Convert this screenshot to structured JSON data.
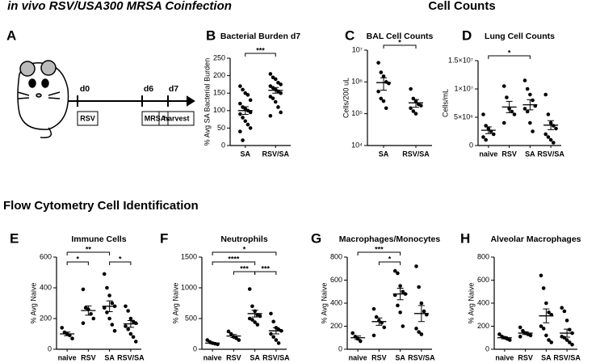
{
  "headings": {
    "coinfection": "in vivo RSV/USA300 MRSA Coinfection",
    "cell_counts": "Cell Counts",
    "flow": "Flow Cytometry Cell Identification"
  },
  "diagram": {
    "panel": "A",
    "days": [
      "d0",
      "d6",
      "d7"
    ],
    "steps": [
      "RSV",
      "MRSA",
      "harvest"
    ]
  },
  "chart_data": [
    {
      "type": "strip",
      "panel": "B",
      "title": "Bacterial Burden d7",
      "y_label": "% Avg SA Bacterial Burden",
      "categories": [
        "SA",
        "RSV/SA"
      ],
      "ylim": [
        0,
        250
      ],
      "yticks": [
        0,
        50,
        100,
        150,
        200,
        250
      ],
      "log": false,
      "groups": [
        {
          "points": [
            170,
            160,
            150,
            145,
            130,
            120,
            110,
            105,
            100,
            95,
            90,
            80,
            70,
            60,
            50,
            40,
            15
          ],
          "mean": 100,
          "sem": 11
        },
        {
          "points": [
            205,
            195,
            190,
            180,
            175,
            170,
            165,
            160,
            155,
            150,
            140,
            135,
            125,
            110,
            95,
            85
          ],
          "mean": 158,
          "sem": 8
        }
      ],
      "significance": [
        {
          "between": [
            "SA",
            "RSV/SA"
          ],
          "label": "***"
        }
      ]
    },
    {
      "type": "strip",
      "panel": "C",
      "title": "BAL Cell Counts",
      "y_label": "Cells/200 uL",
      "categories": [
        "SA",
        "RSV/SA"
      ],
      "ylim": [
        10000,
        10000000
      ],
      "log": true,
      "yticks": [
        {
          "value": 10000,
          "label": "10⁴"
        },
        {
          "value": 100000,
          "label": "10⁵"
        },
        {
          "value": 1000000,
          "label": "10⁶"
        },
        {
          "value": 10000000,
          "label": "10⁷"
        }
      ],
      "groups": [
        {
          "points": [
            4000000,
            2000000,
            1500000,
            1000000,
            900000,
            500000,
            300000,
            250000,
            150000
          ],
          "mean": 950000,
          "sem": 400000
        },
        {
          "points": [
            600000,
            300000,
            250000,
            200000,
            180000,
            150000,
            120000,
            100000
          ],
          "mean": 220000,
          "sem": 60000
        }
      ],
      "significance": [
        {
          "between": [
            "SA",
            "RSV/SA"
          ],
          "label": "*"
        }
      ]
    },
    {
      "type": "strip",
      "panel": "D",
      "title": "Lung Cell Counts",
      "y_label": "Cells/mL",
      "categories": [
        "naive",
        "RSV",
        "SA",
        "RSV/SA"
      ],
      "ylim": [
        0,
        15000000
      ],
      "log": false,
      "yticks": [
        0,
        {
          "value": 5000000,
          "label": "5×10⁶"
        },
        {
          "value": 10000000,
          "label": "1×10⁷"
        },
        {
          "value": 15000000,
          "label": "1.5×10⁷"
        }
      ],
      "groups": [
        {
          "points": [
            5500000,
            3500000,
            3000000,
            2500000,
            2000000,
            1500000,
            1000000
          ],
          "mean": 2700000,
          "sem": 600000
        },
        {
          "points": [
            10500000,
            8500000,
            6500000,
            6000000,
            5500000,
            4000000
          ],
          "mean": 6800000,
          "sem": 1000000
        },
        {
          "points": [
            11500000,
            10000000,
            9000000,
            8000000,
            7000000,
            6500000,
            6000000,
            4000000,
            2500000
          ],
          "mean": 7200000,
          "sem": 900000
        },
        {
          "points": [
            9000000,
            5500000,
            4000000,
            3500000,
            3000000,
            2000000,
            1500000,
            1000000,
            500000
          ],
          "mean": 3600000,
          "sem": 800000
        }
      ],
      "significance": [
        {
          "between": [
            "naive",
            "SA"
          ],
          "label": "*"
        }
      ]
    },
    {
      "type": "strip",
      "panel": "E",
      "title": "Immune Cells",
      "y_label": "% Avg Naive",
      "categories": [
        "naive",
        "RSV",
        "SA",
        "RSV/SA"
      ],
      "ylim": [
        0,
        600
      ],
      "yticks": [
        0,
        200,
        400,
        600
      ],
      "log": false,
      "groups": [
        {
          "points": [
            140,
            110,
            100,
            90,
            70
          ],
          "mean": 100,
          "sem": 12
        },
        {
          "points": [
            390,
            270,
            260,
            230,
            200,
            170
          ],
          "mean": 252,
          "sem": 30
        },
        {
          "points": [
            490,
            400,
            350,
            300,
            280,
            270,
            240,
            200,
            160,
            120
          ],
          "mean": 280,
          "sem": 35
        },
        {
          "points": [
            280,
            250,
            200,
            180,
            170,
            150,
            130,
            100,
            80,
            50
          ],
          "mean": 165,
          "sem": 22
        }
      ],
      "significance": [
        {
          "between": [
            "naive",
            "SA"
          ],
          "label": "**"
        },
        {
          "between": [
            "naive",
            "RSV"
          ],
          "label": "*"
        },
        {
          "between": [
            "SA",
            "RSV/SA"
          ],
          "label": "*"
        }
      ]
    },
    {
      "type": "strip",
      "panel": "F",
      "title": "Neutrophils",
      "y_label": "% Avg Naive",
      "categories": [
        "naive",
        "RSV",
        "SA",
        "RSV/SA"
      ],
      "ylim": [
        0,
        1500
      ],
      "yticks": [
        0,
        500,
        1000,
        1500
      ],
      "log": false,
      "groups": [
        {
          "points": [
            150,
            120,
            100,
            90,
            80
          ],
          "mean": 100,
          "sem": 12
        },
        {
          "points": [
            290,
            250,
            200,
            180,
            150
          ],
          "mean": 215,
          "sem": 25
        },
        {
          "points": [
            980,
            700,
            620,
            560,
            540,
            500,
            480,
            440,
            400
          ],
          "mean": 580,
          "sem": 55
        },
        {
          "points": [
            580,
            450,
            350,
            320,
            300,
            250,
            200,
            150,
            100
          ],
          "mean": 300,
          "sem": 50
        }
      ],
      "significance": [
        {
          "between": [
            "naive",
            "RSV/SA"
          ],
          "label": "*"
        },
        {
          "between": [
            "RSV",
            "SA"
          ],
          "label": "***"
        },
        {
          "between": [
            "naive",
            "SA"
          ],
          "label": "****"
        },
        {
          "between": [
            "SA",
            "RSV/SA"
          ],
          "label": "***"
        }
      ]
    },
    {
      "type": "strip",
      "panel": "G",
      "title": "Macrophages/Monocytes",
      "y_label": "% Avg Naive",
      "categories": [
        "naive",
        "RSV",
        "SA",
        "RSV/SA"
      ],
      "ylim": [
        0,
        800
      ],
      "yticks": [
        0,
        200,
        400,
        600,
        800
      ],
      "log": false,
      "groups": [
        {
          "points": [
            140,
            110,
            90,
            70
          ],
          "mean": 100,
          "sem": 15
        },
        {
          "points": [
            350,
            280,
            250,
            230,
            190,
            120
          ],
          "mean": 240,
          "sem": 32
        },
        {
          "points": [
            680,
            660,
            550,
            500,
            480,
            470,
            380,
            320,
            200
          ],
          "mean": 480,
          "sem": 50
        },
        {
          "points": [
            720,
            540,
            400,
            330,
            300,
            180,
            150,
            130
          ],
          "mean": 310,
          "sem": 70
        }
      ],
      "significance": [
        {
          "between": [
            "naive",
            "SA"
          ],
          "label": "***"
        },
        {
          "between": [
            "RSV",
            "SA"
          ],
          "label": "*"
        }
      ]
    },
    {
      "type": "strip",
      "panel": "H",
      "title": "Alveolar Macrophages",
      "y_label": "% Avg Naive",
      "categories": [
        "naive",
        "RSV",
        "SA",
        "RSV/SA"
      ],
      "ylim": [
        0,
        800
      ],
      "yticks": [
        0,
        200,
        400,
        600,
        800
      ],
      "log": false,
      "groups": [
        {
          "points": [
            130,
            110,
            100,
            90,
            80
          ],
          "mean": 100,
          "sem": 10
        },
        {
          "points": [
            190,
            160,
            140,
            130,
            120,
            110
          ],
          "mean": 140,
          "sem": 12
        },
        {
          "points": [
            640,
            530,
            400,
            320,
            300,
            200,
            180,
            120,
            80,
            60
          ],
          "mean": 290,
          "sem": 60
        },
        {
          "points": [
            360,
            330,
            250,
            170,
            140,
            110,
            100,
            80,
            60,
            40
          ],
          "mean": 140,
          "sem": 35
        }
      ],
      "significance": []
    }
  ]
}
